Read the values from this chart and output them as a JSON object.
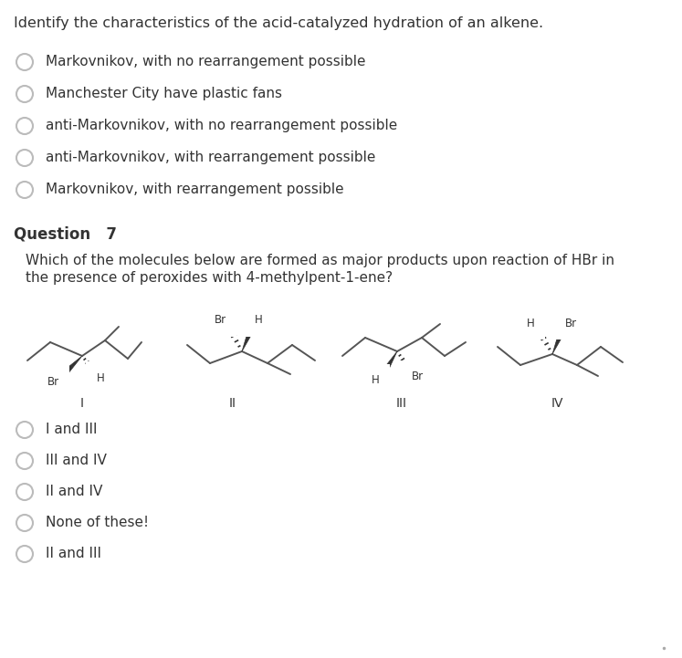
{
  "background_color": "#ffffff",
  "text_color": "#333333",
  "title": "Identify the characteristics of the acid-catalyzed hydration of an alkene.",
  "q1_options": [
    "Markovnikov, with no rearrangement possible",
    "Manchester City have plastic fans",
    "anti-Markovnikov, with no rearrangement possible",
    "anti-Markovnikov, with rearrangement possible",
    "Markovnikov, with rearrangement possible"
  ],
  "question7": "Question   7",
  "q7_line1": "Which of the molecules below are formed as major products upon reaction of HBr in",
  "q7_line2": "the presence of peroxides with 4-methylpent-1-ene?",
  "mol_labels": [
    "I",
    "II",
    "III",
    "IV"
  ],
  "q2_options": [
    "I and III",
    "III and IV",
    "II and IV",
    "None of these!",
    "II and III"
  ]
}
